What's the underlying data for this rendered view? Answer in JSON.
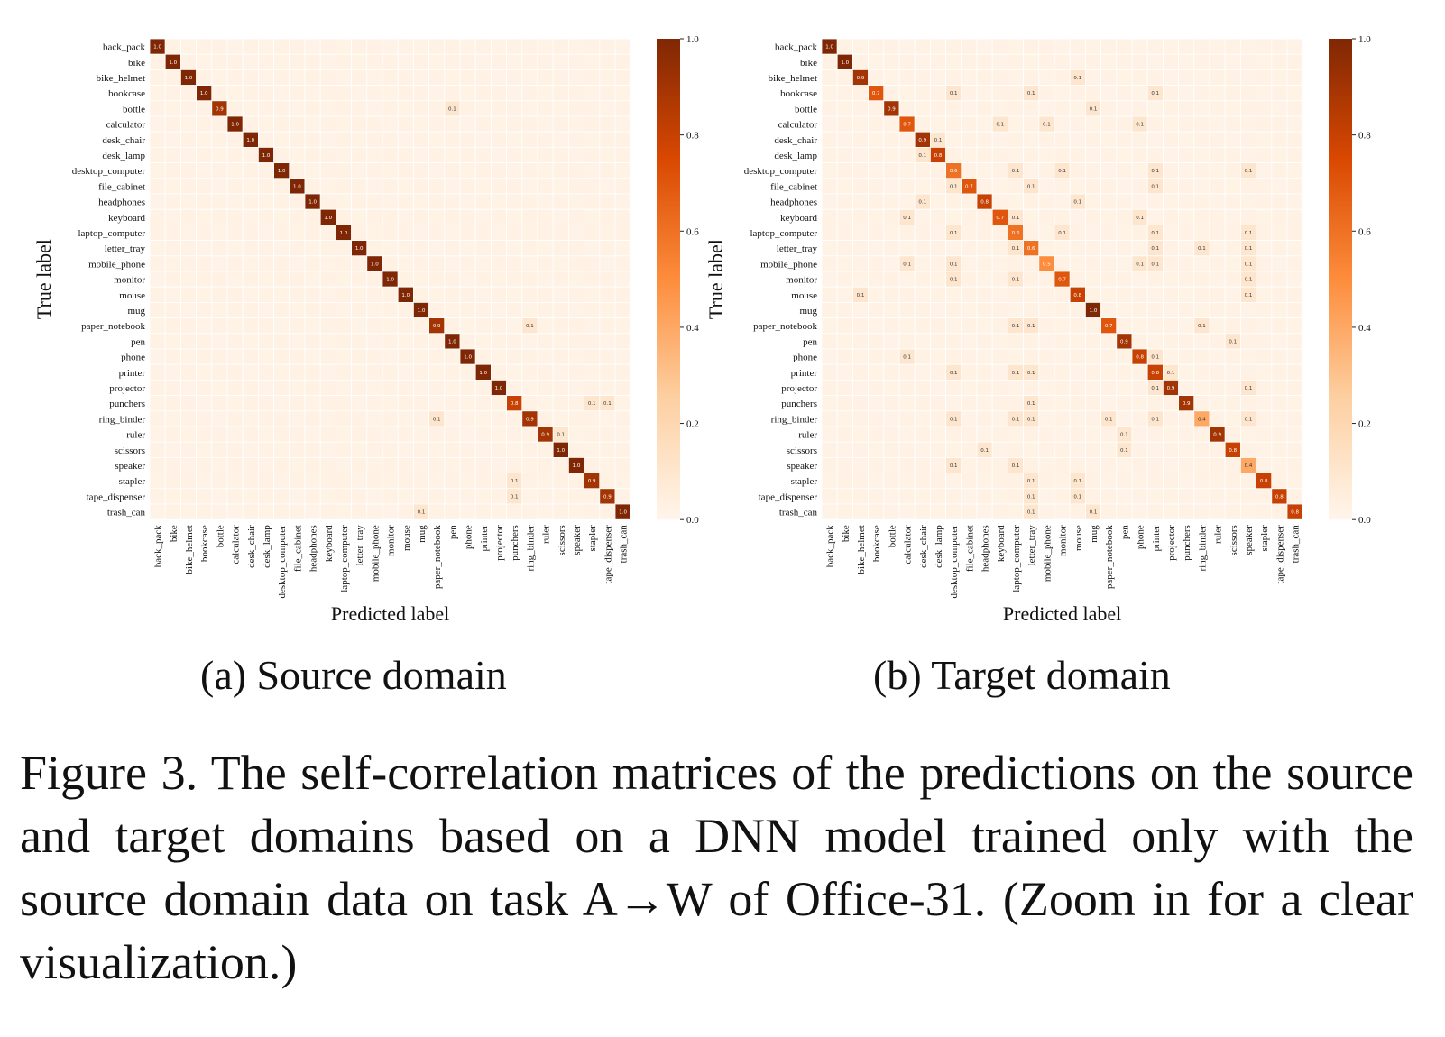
{
  "figure": {
    "caption": "Figure 3. The self-correlation matrices of the predictions on the source and target domains based on a DNN model trained only with the source domain data on task A→W of Office-31. (Zoom in for a clear visualization.)"
  },
  "colors": {
    "cmap_low": "#fff5eb",
    "cmap_mid1": "#fdd0a2",
    "cmap_mid2": "#fd8d3c",
    "cmap_mid3": "#d94801",
    "cmap_high": "#7f2704",
    "grid_line": "#ffffff"
  },
  "chart_data": [
    {
      "type": "heatmap",
      "caption": "(a) Source domain",
      "xlabel": "Predicted label",
      "ylabel": "True label",
      "labels": [
        "back_pack",
        "bike",
        "bike_helmet",
        "bookcase",
        "bottle",
        "calculator",
        "desk_chair",
        "desk_lamp",
        "desktop_computer",
        "file_cabinet",
        "headphones",
        "keyboard",
        "laptop_computer",
        "letter_tray",
        "mobile_phone",
        "monitor",
        "mouse",
        "mug",
        "paper_notebook",
        "pen",
        "phone",
        "printer",
        "projector",
        "punchers",
        "ring_binder",
        "ruler",
        "scissors",
        "speaker",
        "stapler",
        "tape_dispenser",
        "trash_can"
      ],
      "colorbar": {
        "vmin": 0.0,
        "vmax": 1.0,
        "ticks": [
          "0.0",
          "0.2",
          "0.4",
          "0.6",
          "0.8",
          "1.0"
        ]
      },
      "diagonal": [
        1.0,
        1.0,
        1.0,
        1.0,
        0.9,
        1.0,
        1.0,
        1.0,
        1.0,
        1.0,
        1.0,
        1.0,
        1.0,
        1.0,
        1.0,
        1.0,
        1.0,
        1.0,
        0.9,
        1.0,
        1.0,
        1.0,
        1.0,
        0.8,
        0.9,
        0.9,
        1.0,
        1.0,
        0.9,
        0.9,
        1.0
      ],
      "off_diagonal": [
        {
          "row": 4,
          "col": 19,
          "value": 0.1
        },
        {
          "row": 18,
          "col": 24,
          "value": 0.1
        },
        {
          "row": 23,
          "col": 28,
          "value": 0.1
        },
        {
          "row": 23,
          "col": 29,
          "value": 0.1
        },
        {
          "row": 24,
          "col": 18,
          "value": 0.1
        },
        {
          "row": 25,
          "col": 26,
          "value": 0.1
        },
        {
          "row": 28,
          "col": 23,
          "value": 0.1
        },
        {
          "row": 29,
          "col": 23,
          "value": 0.1
        },
        {
          "row": 30,
          "col": 17,
          "value": 0.1
        }
      ]
    },
    {
      "type": "heatmap",
      "caption": "(b) Target domain",
      "xlabel": "Predicted label",
      "ylabel": "True label",
      "labels": [
        "back_pack",
        "bike",
        "bike_helmet",
        "bookcase",
        "bottle",
        "calculator",
        "desk_chair",
        "desk_lamp",
        "desktop_computer",
        "file_cabinet",
        "headphones",
        "keyboard",
        "laptop_computer",
        "letter_tray",
        "mobile_phone",
        "monitor",
        "mouse",
        "mug",
        "paper_notebook",
        "pen",
        "phone",
        "printer",
        "projector",
        "punchers",
        "ring_binder",
        "ruler",
        "scissors",
        "speaker",
        "stapler",
        "tape_dispenser",
        "trash_can"
      ],
      "colorbar": {
        "vmin": 0.0,
        "vmax": 1.0,
        "ticks": [
          "0.0",
          "0.2",
          "0.4",
          "0.6",
          "0.8",
          "1.0"
        ]
      },
      "diagonal": [
        1.0,
        1.0,
        0.9,
        0.7,
        0.9,
        0.7,
        0.9,
        0.8,
        0.6,
        0.7,
        0.8,
        0.7,
        0.6,
        0.6,
        0.5,
        0.7,
        0.8,
        1.0,
        0.7,
        0.9,
        0.8,
        0.8,
        0.9,
        0.9,
        0.4,
        0.9,
        0.8,
        0.4,
        0.8,
        0.8,
        0.8
      ],
      "off_diagonal": [
        {
          "row": 2,
          "col": 16,
          "value": 0.1
        },
        {
          "row": 3,
          "col": 8,
          "value": 0.1
        },
        {
          "row": 3,
          "col": 13,
          "value": 0.1
        },
        {
          "row": 3,
          "col": 21,
          "value": 0.1
        },
        {
          "row": 4,
          "col": 17,
          "value": 0.1
        },
        {
          "row": 5,
          "col": 11,
          "value": 0.1
        },
        {
          "row": 5,
          "col": 14,
          "value": 0.1
        },
        {
          "row": 5,
          "col": 20,
          "value": 0.1
        },
        {
          "row": 6,
          "col": 7,
          "value": 0.1
        },
        {
          "row": 7,
          "col": 6,
          "value": 0.1
        },
        {
          "row": 8,
          "col": 12,
          "value": 0.1
        },
        {
          "row": 8,
          "col": 15,
          "value": 0.1
        },
        {
          "row": 8,
          "col": 21,
          "value": 0.1
        },
        {
          "row": 8,
          "col": 27,
          "value": 0.1
        },
        {
          "row": 9,
          "col": 8,
          "value": 0.1
        },
        {
          "row": 9,
          "col": 13,
          "value": 0.1
        },
        {
          "row": 9,
          "col": 21,
          "value": 0.1
        },
        {
          "row": 10,
          "col": 6,
          "value": 0.1
        },
        {
          "row": 10,
          "col": 16,
          "value": 0.1
        },
        {
          "row": 11,
          "col": 5,
          "value": 0.1
        },
        {
          "row": 11,
          "col": 12,
          "value": 0.1
        },
        {
          "row": 11,
          "col": 20,
          "value": 0.1
        },
        {
          "row": 12,
          "col": 8,
          "value": 0.1
        },
        {
          "row": 12,
          "col": 15,
          "value": 0.1
        },
        {
          "row": 12,
          "col": 21,
          "value": 0.1
        },
        {
          "row": 12,
          "col": 27,
          "value": 0.1
        },
        {
          "row": 13,
          "col": 12,
          "value": 0.1
        },
        {
          "row": 13,
          "col": 21,
          "value": 0.1
        },
        {
          "row": 13,
          "col": 24,
          "value": 0.1
        },
        {
          "row": 13,
          "col": 27,
          "value": 0.1
        },
        {
          "row": 14,
          "col": 5,
          "value": 0.1
        },
        {
          "row": 14,
          "col": 8,
          "value": 0.1
        },
        {
          "row": 14,
          "col": 20,
          "value": 0.1
        },
        {
          "row": 14,
          "col": 21,
          "value": 0.1
        },
        {
          "row": 14,
          "col": 27,
          "value": 0.1
        },
        {
          "row": 15,
          "col": 8,
          "value": 0.1
        },
        {
          "row": 15,
          "col": 12,
          "value": 0.1
        },
        {
          "row": 15,
          "col": 27,
          "value": 0.1
        },
        {
          "row": 16,
          "col": 2,
          "value": 0.1
        },
        {
          "row": 16,
          "col": 27,
          "value": 0.1
        },
        {
          "row": 18,
          "col": 12,
          "value": 0.1
        },
        {
          "row": 18,
          "col": 13,
          "value": 0.1
        },
        {
          "row": 18,
          "col": 24,
          "value": 0.1
        },
        {
          "row": 19,
          "col": 26,
          "value": 0.1
        },
        {
          "row": 20,
          "col": 5,
          "value": 0.1
        },
        {
          "row": 20,
          "col": 21,
          "value": 0.1
        },
        {
          "row": 21,
          "col": 8,
          "value": 0.1
        },
        {
          "row": 21,
          "col": 12,
          "value": 0.1
        },
        {
          "row": 21,
          "col": 13,
          "value": 0.1
        },
        {
          "row": 21,
          "col": 22,
          "value": 0.1
        },
        {
          "row": 22,
          "col": 21,
          "value": 0.1
        },
        {
          "row": 22,
          "col": 27,
          "value": 0.1
        },
        {
          "row": 23,
          "col": 13,
          "value": 0.1
        },
        {
          "row": 24,
          "col": 8,
          "value": 0.1
        },
        {
          "row": 24,
          "col": 12,
          "value": 0.1
        },
        {
          "row": 24,
          "col": 13,
          "value": 0.1
        },
        {
          "row": 24,
          "col": 18,
          "value": 0.1
        },
        {
          "row": 24,
          "col": 21,
          "value": 0.1
        },
        {
          "row": 24,
          "col": 27,
          "value": 0.1
        },
        {
          "row": 25,
          "col": 19,
          "value": 0.1
        },
        {
          "row": 26,
          "col": 10,
          "value": 0.1
        },
        {
          "row": 26,
          "col": 19,
          "value": 0.1
        },
        {
          "row": 27,
          "col": 8,
          "value": 0.1
        },
        {
          "row": 27,
          "col": 12,
          "value": 0.1
        },
        {
          "row": 28,
          "col": 13,
          "value": 0.1
        },
        {
          "row": 28,
          "col": 16,
          "value": 0.1
        },
        {
          "row": 29,
          "col": 13,
          "value": 0.1
        },
        {
          "row": 29,
          "col": 16,
          "value": 0.1
        },
        {
          "row": 30,
          "col": 13,
          "value": 0.1
        },
        {
          "row": 30,
          "col": 17,
          "value": 0.1
        }
      ]
    }
  ]
}
